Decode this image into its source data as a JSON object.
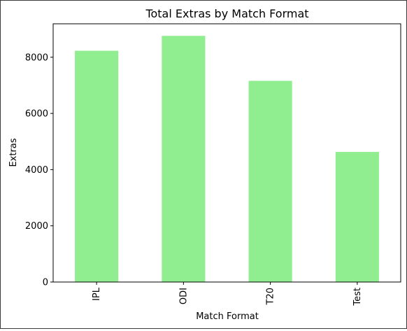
{
  "chart_data": {
    "type": "bar",
    "title": "Total Extras by Match Format",
    "xlabel": "Match Format",
    "ylabel": "Extras",
    "categories": [
      "IPL",
      "ODI",
      "T20",
      "Test"
    ],
    "values": [
      8230,
      8760,
      7160,
      4630
    ],
    "ylim": [
      0,
      9190
    ],
    "yticks": [
      0,
      2000,
      4000,
      6000,
      8000
    ],
    "bar_color": "#90ee90",
    "grid": false
  }
}
